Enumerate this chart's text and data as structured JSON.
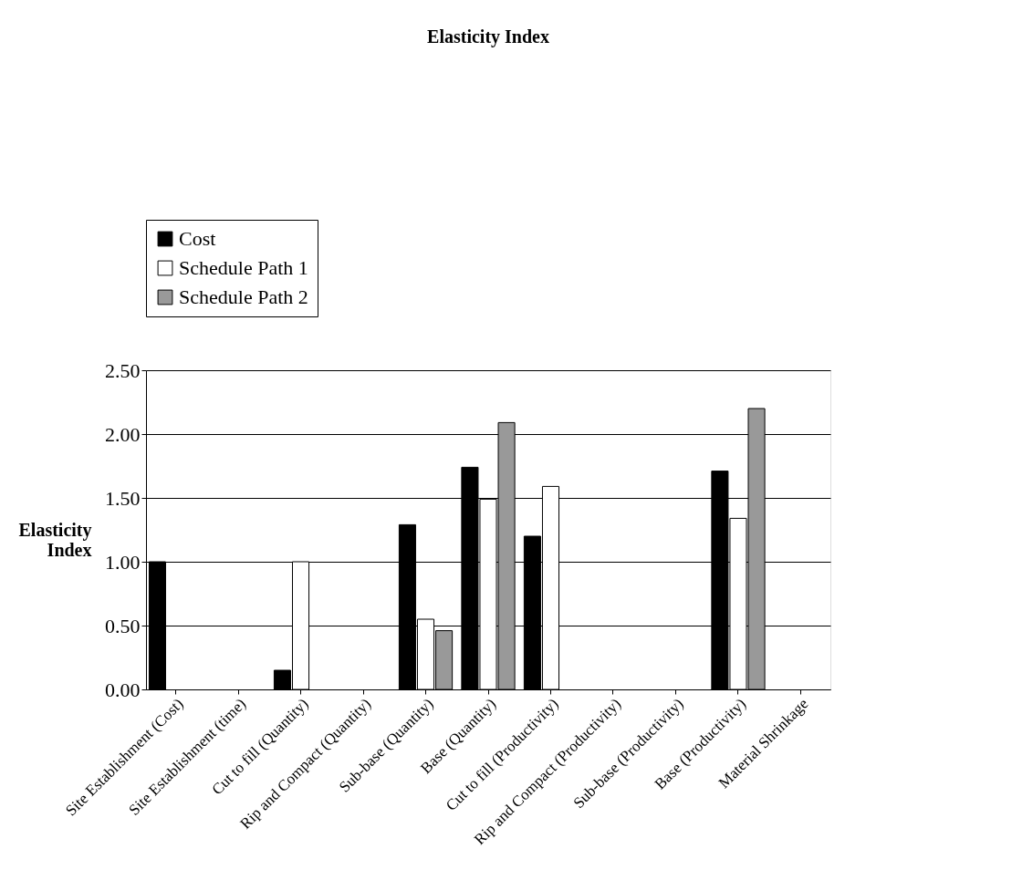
{
  "chart_data": {
    "type": "bar",
    "title": "Elasticity Index",
    "ylabel": "Elasticity Index",
    "categories": [
      "Site Establishment (Cost)",
      "Site Establishment (time)",
      "Cut to fill (Quantity)",
      "Rip and Compact (Quantity)",
      "Sub-base (Quantity)",
      "Base (Quantity)",
      "Cut to fill (Productivity)",
      "Rip and Compact (Productivity)",
      "Sub-base (Productivity)",
      "Base (Productivity)",
      "Material Shrinkage"
    ],
    "series": [
      {
        "name": "Cost",
        "color": "#000000",
        "values": [
          1.0,
          null,
          0.15,
          null,
          1.29,
          1.74,
          1.2,
          null,
          null,
          1.71,
          null
        ]
      },
      {
        "name": "Schedule Path 1",
        "color": "#ffffff",
        "values": [
          null,
          null,
          1.0,
          null,
          0.55,
          1.49,
          1.59,
          null,
          null,
          1.34,
          null
        ]
      },
      {
        "name": "Schedule Path 2",
        "color": "#999999",
        "values": [
          null,
          null,
          null,
          null,
          0.46,
          2.09,
          null,
          null,
          null,
          2.2,
          null
        ]
      }
    ],
    "ylim": [
      0,
      2.5
    ],
    "yticks": [
      {
        "value": 0,
        "label": "0.00"
      },
      {
        "value": 0.5,
        "label": "0.50"
      },
      {
        "value": 1,
        "label": "1.00"
      },
      {
        "value": 1.5,
        "label": "1.50"
      },
      {
        "value": 2,
        "label": "2.00"
      },
      {
        "value": 2.5,
        "label": "2.50"
      }
    ],
    "grid": "y",
    "legend": "top left"
  }
}
